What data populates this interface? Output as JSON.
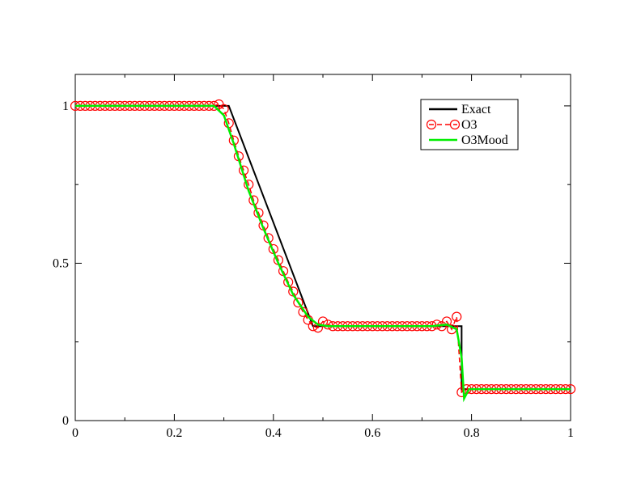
{
  "chart_data": {
    "type": "line",
    "title": "",
    "xlabel": "",
    "ylabel": "",
    "xlim": [
      0,
      1
    ],
    "ylim": [
      0,
      1.1
    ],
    "x_ticks": [
      0,
      0.2,
      0.4,
      0.6,
      0.8,
      1
    ],
    "x_tick_labels": [
      "0",
      "0.2",
      "0.4",
      "0.6",
      "0.8",
      "1"
    ],
    "y_ticks": [
      0,
      0.5,
      1
    ],
    "y_tick_labels": [
      "0",
      "0.5",
      "1"
    ],
    "grid": false,
    "legend_position": "top-right",
    "series": [
      {
        "name": "Exact",
        "color": "#000000",
        "style": "solid-line",
        "x": [
          0,
          0.31,
          0.48,
          0.78,
          0.78,
          1.0
        ],
        "y": [
          1.0,
          1.0,
          0.3,
          0.3,
          0.1,
          0.1
        ]
      },
      {
        "name": "O3",
        "color": "#ff0000",
        "style": "dashed-line-circles",
        "x": [
          0.0,
          0.01,
          0.02,
          0.03,
          0.04,
          0.05,
          0.06,
          0.07,
          0.08,
          0.09,
          0.1,
          0.11,
          0.12,
          0.13,
          0.14,
          0.15,
          0.16,
          0.17,
          0.18,
          0.19,
          0.2,
          0.21,
          0.22,
          0.23,
          0.24,
          0.25,
          0.26,
          0.27,
          0.28,
          0.29,
          0.3,
          0.31,
          0.32,
          0.33,
          0.34,
          0.35,
          0.36,
          0.37,
          0.38,
          0.39,
          0.4,
          0.41,
          0.42,
          0.43,
          0.44,
          0.45,
          0.46,
          0.47,
          0.48,
          0.49,
          0.5,
          0.51,
          0.52,
          0.53,
          0.54,
          0.55,
          0.56,
          0.57,
          0.58,
          0.59,
          0.6,
          0.61,
          0.62,
          0.63,
          0.64,
          0.65,
          0.66,
          0.67,
          0.68,
          0.69,
          0.7,
          0.71,
          0.72,
          0.73,
          0.74,
          0.75,
          0.76,
          0.77,
          0.78,
          0.79,
          0.8,
          0.81,
          0.82,
          0.83,
          0.84,
          0.85,
          0.86,
          0.87,
          0.88,
          0.89,
          0.9,
          0.91,
          0.92,
          0.93,
          0.94,
          0.95,
          0.96,
          0.97,
          0.98,
          0.99,
          1.0
        ],
        "y": [
          1.0,
          1.0,
          1.0,
          1.0,
          1.0,
          1.0,
          1.0,
          1.0,
          1.0,
          1.0,
          1.0,
          1.0,
          1.0,
          1.0,
          1.0,
          1.0,
          1.0,
          1.0,
          1.0,
          1.0,
          1.0,
          1.0,
          1.0,
          1.0,
          1.0,
          1.0,
          1.0,
          1.0,
          1.0,
          1.005,
          0.99,
          0.945,
          0.89,
          0.84,
          0.795,
          0.75,
          0.7,
          0.66,
          0.62,
          0.58,
          0.545,
          0.51,
          0.475,
          0.44,
          0.41,
          0.375,
          0.345,
          0.32,
          0.3,
          0.295,
          0.315,
          0.305,
          0.3,
          0.3,
          0.3,
          0.3,
          0.3,
          0.3,
          0.3,
          0.3,
          0.3,
          0.3,
          0.3,
          0.3,
          0.3,
          0.3,
          0.3,
          0.3,
          0.3,
          0.3,
          0.3,
          0.3,
          0.3,
          0.305,
          0.3,
          0.315,
          0.29,
          0.33,
          0.09,
          0.1,
          0.1,
          0.1,
          0.1,
          0.1,
          0.1,
          0.1,
          0.1,
          0.1,
          0.1,
          0.1,
          0.1,
          0.1,
          0.1,
          0.1,
          0.1,
          0.1,
          0.1,
          0.1,
          0.1,
          0.1,
          0.1
        ]
      },
      {
        "name": "O3Mood",
        "color": "#00ee00",
        "style": "solid-line",
        "x": [
          0,
          0.28,
          0.3,
          0.32,
          0.35,
          0.38,
          0.41,
          0.44,
          0.47,
          0.49,
          0.51,
          0.72,
          0.75,
          0.77,
          0.78,
          0.785,
          0.795,
          0.8,
          1.0
        ],
        "y": [
          1.0,
          1.0,
          0.97,
          0.88,
          0.73,
          0.61,
          0.5,
          0.4,
          0.33,
          0.305,
          0.3,
          0.3,
          0.305,
          0.29,
          0.2,
          0.07,
          0.1,
          0.1,
          0.1
        ]
      }
    ]
  }
}
